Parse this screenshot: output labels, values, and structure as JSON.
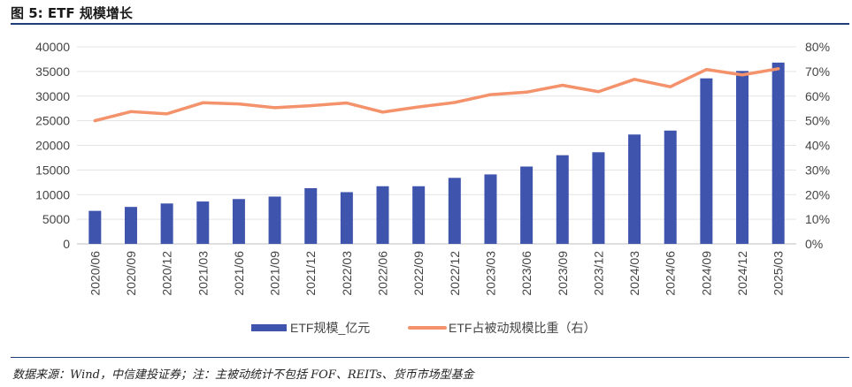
{
  "figure": {
    "title": "图 5: ETF 规模增长",
    "source": "数据来源：Wind，中信建投证券；注：主被动统计不包括 FOF、REITs、货币市场型基金"
  },
  "chart_data": {
    "type": "bar",
    "categories": [
      "2020/06",
      "2020/09",
      "2020/12",
      "2021/03",
      "2021/06",
      "2021/09",
      "2021/12",
      "2022/03",
      "2022/06",
      "2022/09",
      "2022/12",
      "2023/03",
      "2023/06",
      "2023/09",
      "2023/12",
      "2024/03",
      "2024/06",
      "2024/09",
      "2024/12",
      "2025/03"
    ],
    "series": [
      {
        "name": "ETF规模_亿元",
        "type": "bar",
        "axis": "left",
        "color": "#3f55ad",
        "values": [
          6700,
          7500,
          8200,
          8600,
          9100,
          9600,
          11300,
          10500,
          11700,
          11700,
          13400,
          14100,
          15700,
          18000,
          18600,
          22200,
          23000,
          33600,
          35100,
          36800
        ]
      },
      {
        "name": "ETF占被动规模比重（右）",
        "type": "line",
        "axis": "right",
        "color": "#f4926b",
        "values": [
          50.0,
          53.7,
          52.8,
          57.3,
          56.8,
          55.3,
          56.1,
          57.2,
          53.5,
          55.6,
          57.4,
          60.6,
          61.6,
          64.4,
          61.8,
          66.8,
          63.8,
          70.8,
          68.6,
          71.1
        ]
      }
    ],
    "y_left": {
      "min": 0,
      "max": 40000,
      "step": 5000,
      "ticks": [
        "0",
        "5000",
        "10000",
        "15000",
        "20000",
        "25000",
        "30000",
        "35000",
        "40000"
      ]
    },
    "y_right": {
      "min": 0,
      "max": 80,
      "step": 10,
      "ticks": [
        "0%",
        "10%",
        "20%",
        "30%",
        "40%",
        "50%",
        "60%",
        "70%",
        "80%"
      ]
    },
    "grid": true,
    "legend": {
      "placement": "bottom",
      "items": [
        "ETF规模_亿元",
        "ETF占被动规模比重（右）"
      ]
    }
  }
}
